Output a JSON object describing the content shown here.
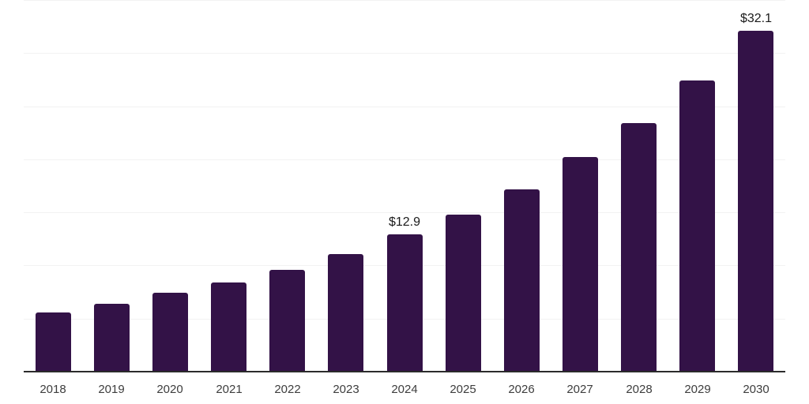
{
  "chart_data": {
    "type": "bar",
    "title": "",
    "xlabel": "",
    "ylabel": "",
    "categories": [
      "2018",
      "2019",
      "2020",
      "2021",
      "2022",
      "2023",
      "2024",
      "2025",
      "2026",
      "2027",
      "2028",
      "2029",
      "2030"
    ],
    "values": [
      5.6,
      6.4,
      7.4,
      8.4,
      9.6,
      11.1,
      12.9,
      14.8,
      17.2,
      20.2,
      23.4,
      27.4,
      32.1
    ],
    "value_label_prefix": "$",
    "annotations": [
      {
        "category": "2024",
        "text": "$12.9"
      },
      {
        "category": "2030",
        "text": "$32.1"
      }
    ],
    "ylim": [
      0,
      35
    ],
    "gridline_step": 5,
    "grid": true,
    "legend_position": "none",
    "y_axis_ticks_visible": false
  },
  "colors": {
    "bar": "#331247",
    "gridline": "#f2f2f2",
    "axis_line": "#2b2b2b",
    "tick_label": "#3d3d3d",
    "value_label": "#1a1a1a",
    "background": "#ffffff"
  }
}
